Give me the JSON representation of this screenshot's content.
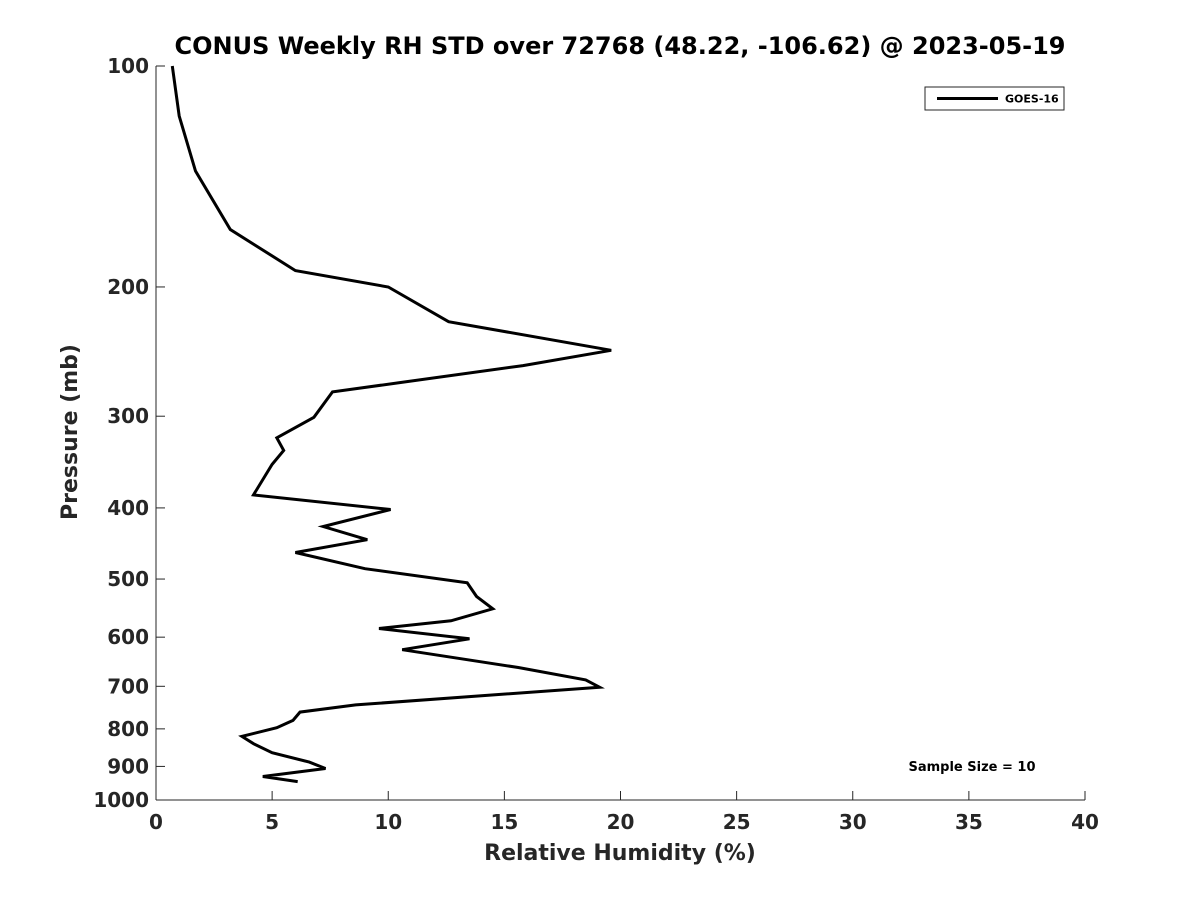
{
  "chart_data": {
    "type": "line",
    "title": "CONUS Weekly RH STD over 72768 (48.22, -106.62) @ 2023-05-19",
    "xlabel": "Relative Humidity (%)",
    "ylabel": "Pressure (mb)",
    "xlim": [
      0,
      40
    ],
    "ylim": [
      100,
      1000
    ],
    "yscale": "log",
    "y_reversed": true,
    "grid": false,
    "legend_position": "top-right",
    "x_ticks": [
      0,
      5,
      10,
      15,
      20,
      25,
      30,
      35,
      40
    ],
    "x_tick_labels": [
      "0",
      "5",
      "10",
      "15",
      "20",
      "25",
      "30",
      "35",
      "40"
    ],
    "y_ticks": [
      100,
      200,
      300,
      400,
      500,
      600,
      700,
      800,
      900,
      1000
    ],
    "y_tick_labels": [
      "100",
      "200",
      "300",
      "400",
      "500",
      "600",
      "700",
      "800",
      "900",
      "1000"
    ],
    "series": [
      {
        "name": "GOES-16",
        "color": "#000000",
        "x": [
          0.7,
          1.0,
          1.7,
          3.2,
          6.0,
          10.0,
          12.6,
          19.6,
          15.8,
          7.6,
          6.8,
          5.2,
          5.5,
          5.0,
          4.2,
          10.1,
          7.2,
          9.1,
          6.0,
          9.0,
          13.4,
          13.8,
          14.5,
          12.7,
          9.6,
          13.5,
          10.6,
          14.1,
          15.6,
          18.5,
          19.1,
          8.6,
          6.2,
          5.9,
          5.2,
          3.7,
          4.2,
          5.0,
          6.6,
          7.3,
          4.6,
          6.1
        ],
        "y": [
          100,
          117,
          139,
          167,
          190,
          200,
          223,
          244,
          256,
          278,
          301,
          321,
          334,
          349,
          384,
          402,
          424,
          442,
          460,
          484,
          506,
          528,
          549,
          570,
          584,
          603,
          624,
          649,
          660,
          686,
          702,
          742,
          759,
          779,
          797,
          819,
          838,
          862,
          888,
          906,
          929,
          944
        ]
      }
    ],
    "annotations": [
      "Sample Size = 10"
    ]
  }
}
